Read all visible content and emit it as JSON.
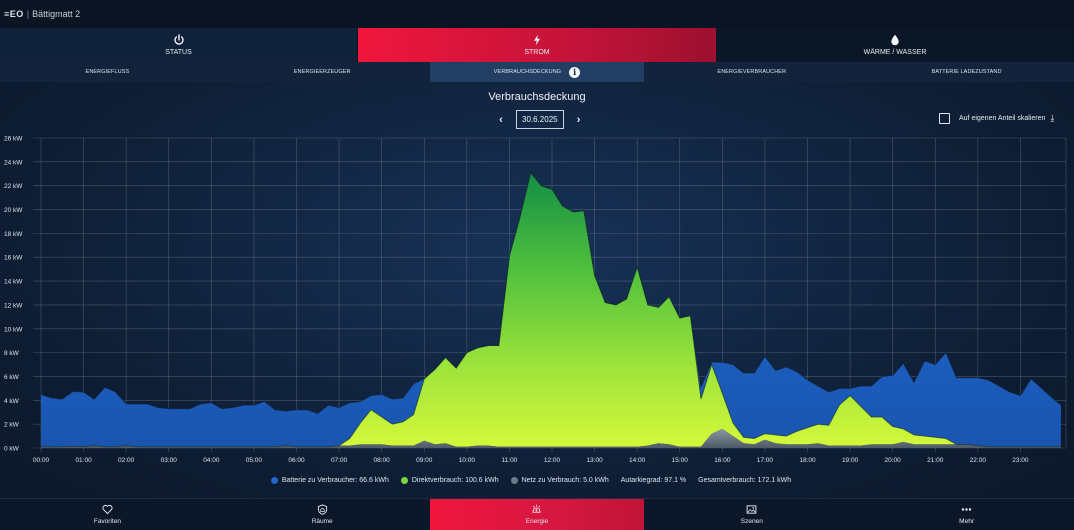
{
  "app": {
    "logo": "≡EO",
    "separator": "|",
    "title": "Bättigmatt 2"
  },
  "main_tabs": [
    {
      "label": "STATUS",
      "icon": "power-icon"
    },
    {
      "label": "STROM",
      "icon": "lightning-icon",
      "active": true
    },
    {
      "label": "WÄRME / WASSER",
      "icon": "water-drop-icon"
    }
  ],
  "sub_tabs": [
    {
      "label": "ENERGIEFLUSS"
    },
    {
      "label": "ENERGIEERZEUGER"
    },
    {
      "label": "VERBRAUCHSDECKUNG",
      "active": true,
      "info_icon": "i"
    },
    {
      "label": "ENERGIEVERBRAUCHER"
    },
    {
      "label": "BATTERIE LADEZUSTAND"
    }
  ],
  "page": {
    "title": "Verbrauchsdeckung",
    "date": "30.6.2025",
    "prev": "‹",
    "next": "›",
    "scale_label": "Auf eigenen Anteil skalieren",
    "download_icon": "⤓"
  },
  "colors": {
    "battery": "#1f67c9",
    "direct_top": "#169447",
    "direct_bottom": "#cdf53a",
    "grid": "#6e7b88",
    "accent": "#e8173f"
  },
  "chart_data": {
    "type": "area",
    "stacked": true,
    "unit": "kW",
    "ylim": [
      0,
      26
    ],
    "ytick_labels": [
      "0 kW",
      "2 kW",
      "4 kW",
      "6 kW",
      "8 kW",
      "10 kW",
      "12 kW",
      "14 kW",
      "16 kW",
      "18 kW",
      "20 kW",
      "22 kW",
      "24 kW",
      "26 kW"
    ],
    "xtick_labels": [
      "00:00",
      "01:00",
      "02:00",
      "03:00",
      "04:00",
      "05:00",
      "06:00",
      "07:00",
      "08:00",
      "09:00",
      "10:00",
      "11:00",
      "12:00",
      "13:00",
      "14:00",
      "15:00",
      "16:00",
      "17:00",
      "18:00",
      "19:00",
      "20:00",
      "21:00",
      "22:00",
      "23:00"
    ],
    "grid": true,
    "x_hours": [
      0,
      0.25,
      0.5,
      0.75,
      1,
      1.25,
      1.5,
      1.75,
      2,
      2.25,
      2.5,
      2.75,
      3,
      3.25,
      3.5,
      3.75,
      4,
      4.25,
      4.5,
      4.75,
      5,
      5.25,
      5.5,
      5.75,
      6,
      6.25,
      6.5,
      6.75,
      7,
      7.25,
      7.5,
      7.75,
      8,
      8.25,
      8.5,
      8.75,
      9,
      9.25,
      9.5,
      9.75,
      10,
      10.25,
      10.5,
      10.75,
      11,
      11.25,
      11.5,
      11.75,
      12,
      12.25,
      12.5,
      12.75,
      13,
      13.25,
      13.5,
      13.75,
      14,
      14.25,
      14.5,
      14.75,
      15,
      15.25,
      15.5,
      15.75,
      16,
      16.25,
      16.5,
      16.75,
      17,
      17.25,
      17.5,
      17.75,
      18,
      18.25,
      18.5,
      18.75,
      19,
      19.25,
      19.5,
      19.75,
      20,
      20.25,
      20.5,
      20.75,
      21,
      21.25,
      21.5,
      21.75,
      22,
      22.25,
      22.5,
      22.75,
      23,
      23.25,
      23.5,
      23.75
    ],
    "series": [
      {
        "name": "Netz zu Verbrauch",
        "values": [
          0.1,
          0.1,
          0.1,
          0.15,
          0.1,
          0.2,
          0.1,
          0.1,
          0.2,
          0.1,
          0.1,
          0.1,
          0.1,
          0.1,
          0.1,
          0.1,
          0.1,
          0.1,
          0.1,
          0.1,
          0.1,
          0.1,
          0.1,
          0.2,
          0.1,
          0.1,
          0.1,
          0.1,
          0.2,
          0.2,
          0.3,
          0.3,
          0.3,
          0.2,
          0.2,
          0.2,
          0.6,
          0.3,
          0.4,
          0.1,
          0.1,
          0.2,
          0.2,
          0.1,
          0.1,
          0.1,
          0.1,
          0.1,
          0.1,
          0.1,
          0.1,
          0.1,
          0.1,
          0.1,
          0.1,
          0.1,
          0.1,
          0.2,
          0.4,
          0.3,
          0.1,
          0.1,
          0.1,
          1.2,
          1.6,
          1.0,
          0.4,
          0.3,
          0.7,
          0.4,
          0.3,
          0.3,
          0.3,
          0.4,
          0.2,
          0.2,
          0.2,
          0.2,
          0.3,
          0.3,
          0.3,
          0.5,
          0.3,
          0.3,
          0.3,
          0.3,
          0.3,
          0.3,
          0.2,
          0.1,
          0.1,
          0.1,
          0.1,
          0.1,
          0.1,
          0.1
        ]
      },
      {
        "name": "Direktverbrauch",
        "values": [
          0,
          0,
          0,
          0,
          0,
          0,
          0,
          0,
          0,
          0,
          0,
          0,
          0,
          0,
          0,
          0,
          0,
          0,
          0,
          0,
          0,
          0,
          0,
          0,
          0,
          0,
          0,
          0,
          0,
          0.6,
          1.8,
          2.9,
          2.3,
          1.8,
          2.0,
          2.6,
          5.2,
          6.3,
          7.2,
          6.6,
          7.9,
          8.2,
          8.4,
          8.5,
          16.0,
          19.3,
          23.0,
          21.9,
          21.6,
          20.2,
          19.7,
          19.8,
          14.4,
          12.1,
          11.9,
          12.4,
          15.1,
          11.8,
          11.4,
          12.4,
          10.8,
          11.0,
          4.0,
          5.8,
          3.0,
          1.1,
          0.5,
          0.5,
          0.5,
          0.7,
          0.7,
          1.1,
          1.4,
          1.6,
          1.7,
          3.4,
          4.2,
          3.3,
          2.3,
          2.3,
          1.5,
          1.1,
          0.8,
          0.7,
          0.6,
          0.5,
          0,
          0,
          0,
          0,
          0,
          0,
          0,
          0,
          0,
          0
        ]
      },
      {
        "name": "Batterie zu Verbraucher",
        "values": [
          4.4,
          4.1,
          4.0,
          4.6,
          4.6,
          3.9,
          5.0,
          4.6,
          3.5,
          3.6,
          3.6,
          3.3,
          3.2,
          3.2,
          3.2,
          3.6,
          3.7,
          3.2,
          3.3,
          3.5,
          3.5,
          3.8,
          3.1,
          2.9,
          3.1,
          3.1,
          2.8,
          3.5,
          3.2,
          3.0,
          1.8,
          1.2,
          1.9,
          2.1,
          2.0,
          2.6,
          0,
          0,
          0,
          0,
          0,
          0,
          0,
          0,
          0,
          0,
          0,
          0,
          0,
          0,
          0,
          0,
          0,
          0,
          0,
          0,
          0,
          0,
          0,
          0,
          0,
          0,
          1.0,
          0.2,
          2.6,
          4.9,
          5.4,
          5.5,
          6.5,
          5.4,
          5.8,
          5.0,
          4.0,
          3.2,
          2.8,
          1.4,
          0.6,
          1.7,
          2.6,
          3.4,
          4.3,
          5.5,
          4.4,
          6.3,
          6.1,
          7.2,
          5.6,
          5.6,
          5.7,
          5.6,
          5.1,
          4.6,
          4.3,
          5.7,
          4.9,
          4.1
        ]
      }
    ],
    "last_battery_value": 3.5
  },
  "legend": {
    "battery": "Batterie zu Verbraucher: 66.6 kWh",
    "direct": "Direktverbrauch: 100.6 kWh",
    "grid": "Netz zu Verbrauch: 5.0 kWh",
    "autarky": "Autarkiegrad: 97.1 %",
    "total": "Gesamtverbrauch: 172.1 kWh"
  },
  "bottom_nav": [
    {
      "label": "Favoriten",
      "icon": "heart-icon"
    },
    {
      "label": "Räume",
      "icon": "shield-house-icon"
    },
    {
      "label": "Energie",
      "icon": "energy-icon",
      "active": true
    },
    {
      "label": "Szenen",
      "icon": "image-icon"
    },
    {
      "label": "Mehr",
      "icon": "more-dots-icon"
    }
  ]
}
